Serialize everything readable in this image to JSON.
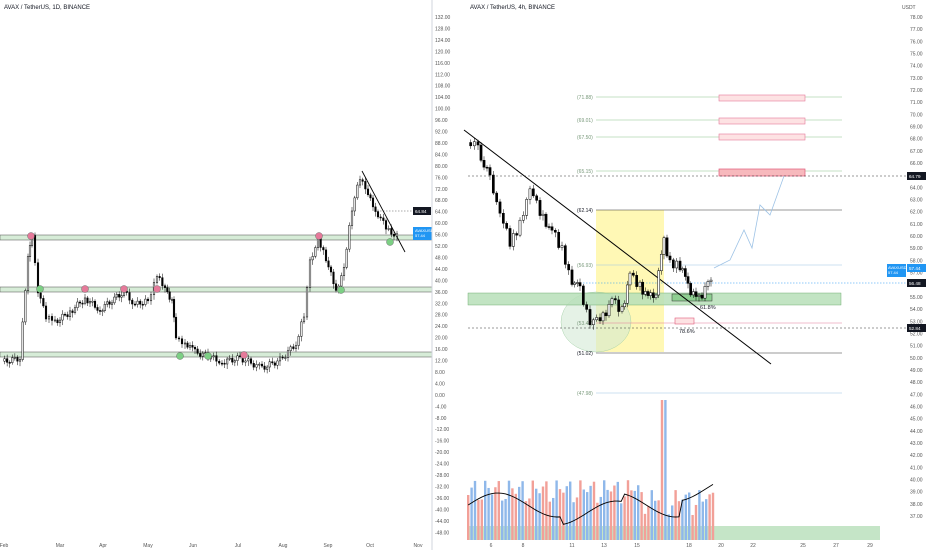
{
  "colors": {
    "up": "#26a69a",
    "down": "#ef5350",
    "candle": "#000000",
    "green_zone": "#b7dfb9",
    "red_zone": "#f7c6c7",
    "yellow": "#fff59d",
    "price_tag": "#2196f3",
    "dark_tag": "#131722"
  },
  "left_chart": {
    "title": "AVAX / TetherUS, 1D, BINANCE",
    "time_labels": [
      "Feb",
      "Mar",
      "Apr",
      "May",
      "Jun",
      "Jul",
      "Aug",
      "Sep",
      "Oct",
      "Nov"
    ],
    "price_labels": [
      "132.00",
      "128.00",
      "124.00",
      "120.00",
      "116.00",
      "112.00",
      "108.00",
      "104.00",
      "100.00",
      "96.00",
      "92.00",
      "88.00",
      "84.00",
      "80.00",
      "76.00",
      "72.00",
      "68.00",
      "64.00",
      "60.00",
      "56.00",
      "52.00",
      "48.00",
      "44.00",
      "40.00",
      "36.00",
      "32.00",
      "28.00",
      "24.00",
      "20.00",
      "16.00",
      "12.00",
      "8.00",
      "4.00",
      "0.00",
      "-4.00",
      "-8.00",
      "-12.00",
      "-16.00",
      "-20.00",
      "-24.00",
      "-28.00",
      "-32.00",
      "-36.00",
      "-40.00",
      "-44.00",
      "-48.00"
    ],
    "tag_price": "57.44",
    "tag_sub": "AVAXUSDT",
    "tag_time": "02:15:30",
    "tag_dark": "64.84"
  },
  "right_chart": {
    "title": "AVAX / TetherUS, 4h, BINANCE",
    "unit": "USDT",
    "time_labels": [
      "6",
      "8",
      "11",
      "13",
      "15",
      "18",
      "20",
      "22",
      "25",
      "27",
      "29"
    ],
    "price_labels": [
      "78.00",
      "77.00",
      "76.00",
      "75.00",
      "74.00",
      "73.00",
      "72.00",
      "71.00",
      "70.00",
      "69.00",
      "68.00",
      "67.00",
      "66.00",
      "65.00",
      "64.00",
      "63.00",
      "62.00",
      "61.00",
      "60.00",
      "59.00",
      "58.00",
      "57.00",
      "56.00",
      "55.00",
      "54.00",
      "53.00",
      "52.00",
      "51.00",
      "50.00",
      "49.00",
      "48.00",
      "47.00",
      "46.00",
      "45.00",
      "44.00",
      "43.00",
      "42.00",
      "41.00",
      "40.00",
      "39.00",
      "38.00",
      "37.00"
    ],
    "fib_labels": [
      "(71.88)",
      "(69.01)",
      "(67.50)",
      "(65.15)",
      "(62.14)",
      "(56.93)",
      "(53.48)",
      "(51.02)",
      "(47.98)"
    ],
    "pct_labels": [
      "61.8%",
      "78.6%"
    ],
    "tag_price": "57.44",
    "tag_sub": "AVAXUSDT",
    "tag_time": "02:15:30",
    "tag_dark_1": "64.79",
    "tag_dark_2": "56.48",
    "tag_dark_3": "52.84"
  }
}
